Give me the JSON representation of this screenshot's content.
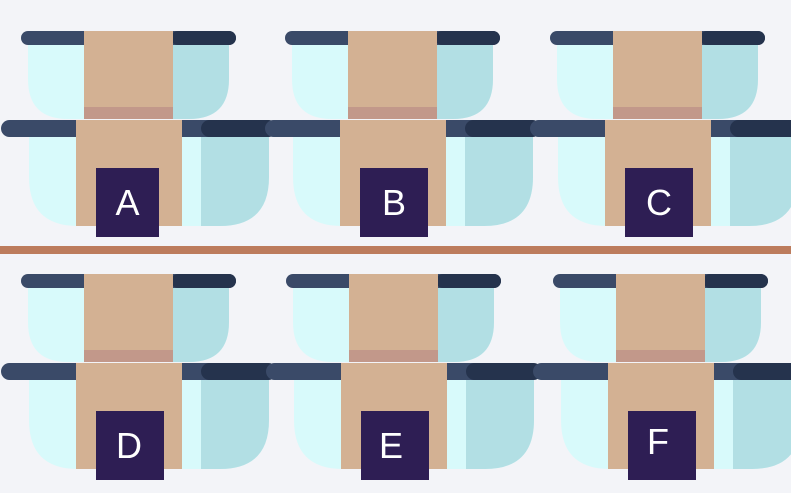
{
  "colors": {
    "background": "#f3f4f8",
    "shelf": "#bc7c5d",
    "lid": "#3a4a68",
    "lid_shadow": "#25334d",
    "glass": "#d8fafb",
    "glass_shade": "#b2dfe4",
    "band": "#d3b193",
    "band_shade": "#c2988a",
    "label_bg": "#2e1e54",
    "label_text": "#ffffff"
  },
  "options": [
    {
      "label": "A"
    },
    {
      "label": "B"
    },
    {
      "label": "C"
    },
    {
      "label": "D"
    },
    {
      "label": "E"
    },
    {
      "label": "F"
    }
  ]
}
